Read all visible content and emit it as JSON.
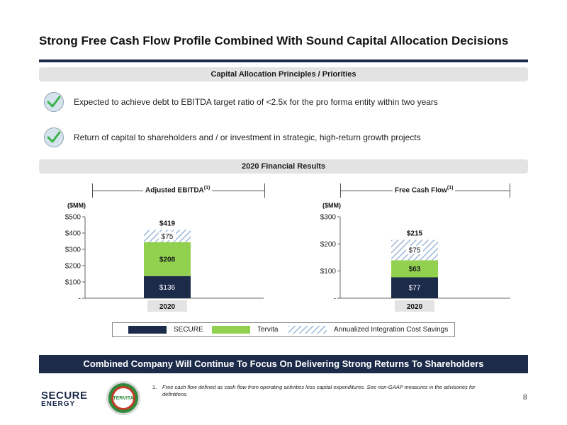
{
  "title": "Strong Free Cash Flow Profile Combined With Sound Capital Allocation Decisions",
  "principles_header": "Capital Allocation Principles / Priorities",
  "principles": [
    "Expected to achieve debt to EBITDA target ratio of <2.5x for the pro forma entity within two years",
    "Return of capital to shareholders and / or investment in strategic, high-return growth projects"
  ],
  "results_header": "2020 Financial Results",
  "colors": {
    "secure": "#1c2b4a",
    "tervita": "#92d050",
    "savings": "#b8cce4",
    "banner": "#1c2b4a"
  },
  "chart_data": [
    {
      "type": "bar",
      "title": "Adjusted EBITDA",
      "title_sup": "(1)",
      "unit_label": "($MM)",
      "categories": [
        "2020"
      ],
      "ylim": [
        0,
        500
      ],
      "y_ticks": [
        "-",
        "$100",
        "$200",
        "$300",
        "$400",
        "$500"
      ],
      "series": [
        {
          "name": "SECURE",
          "values": [
            136
          ],
          "labels": [
            "$136"
          ]
        },
        {
          "name": "Tervita",
          "values": [
            208
          ],
          "labels": [
            "$208"
          ]
        },
        {
          "name": "Annualized Integration Cost Savings",
          "values": [
            75
          ],
          "labels": [
            "$75"
          ]
        }
      ],
      "total_label": "$419"
    },
    {
      "type": "bar",
      "title": "Free Cash Flow",
      "title_sup": "(1)",
      "unit_label": "($MM)",
      "categories": [
        "2020"
      ],
      "ylim": [
        0,
        300
      ],
      "y_ticks": [
        "-",
        "$100",
        "$200",
        "$300"
      ],
      "series": [
        {
          "name": "SECURE",
          "values": [
            77
          ],
          "labels": [
            "$77"
          ]
        },
        {
          "name": "Tervita",
          "values": [
            63
          ],
          "labels": [
            "$63"
          ]
        },
        {
          "name": "Annualized Integration Cost Savings",
          "values": [
            75
          ],
          "labels": [
            "$75"
          ]
        }
      ],
      "total_label": "$215"
    }
  ],
  "legend": [
    "SECURE",
    "Tervita",
    "Annualized Integration Cost Savings"
  ],
  "banner": "Combined Company Will Continue To Focus On Delivering Strong Returns To Shareholders",
  "logos": {
    "secure_top": "SECURE",
    "secure_bottom": "ENERGY",
    "tervita": "TERVITA"
  },
  "footnote": {
    "number": "1.",
    "text": "Free cash flow defined as cash flow from operating activities less capital expenditures. See non-GAAP measures in the advisories for definitions."
  },
  "page_number": "8"
}
